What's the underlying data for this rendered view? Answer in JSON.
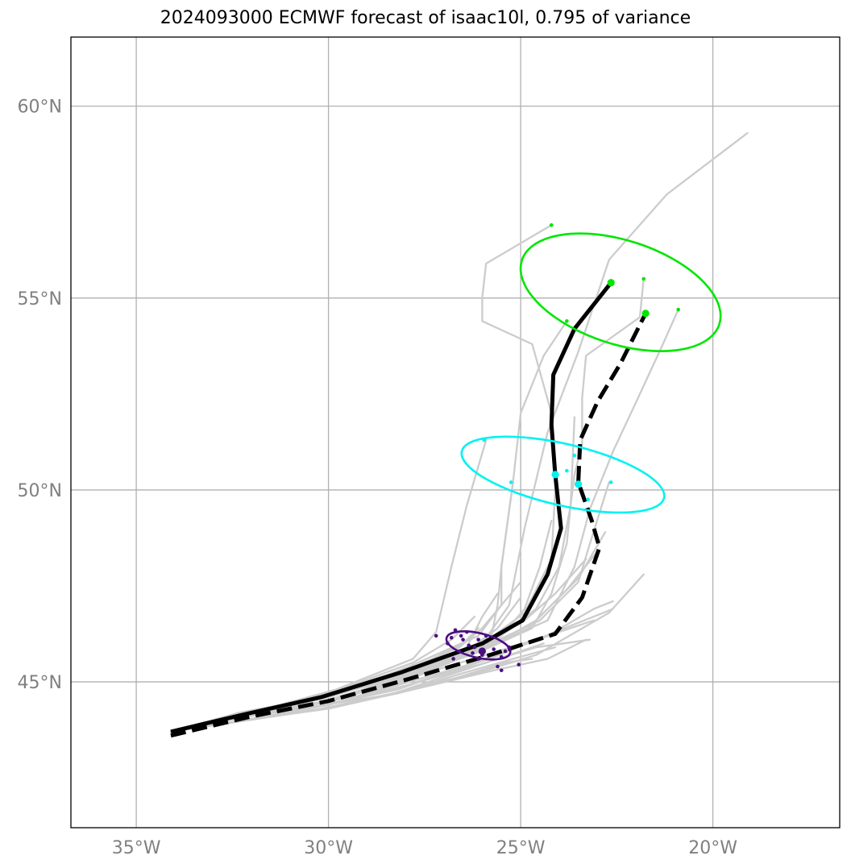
{
  "title": "2024093000 ECMWF forecast of isaac10l, 0.795 of variance",
  "colors": {
    "ensemble": "#cccccc",
    "mean_track": "#000000",
    "early_cluster": "#4b0f82",
    "mid_cluster": "#00f2f2",
    "late_cluster": "#00e600",
    "grid": "#b0b0b0",
    "tick_text": "#808080"
  },
  "chart_data": {
    "type": "map-tracks",
    "xlim": [
      -36.7,
      -16.7
    ],
    "ylim": [
      41.2,
      61.8
    ],
    "x_ticks": [
      {
        "value": -35,
        "label": "35°W"
      },
      {
        "value": -30,
        "label": "30°W"
      },
      {
        "value": -25,
        "label": "25°W"
      },
      {
        "value": -20,
        "label": "20°W"
      }
    ],
    "y_ticks": [
      {
        "value": 60,
        "label": "60°N"
      },
      {
        "value": 55,
        "label": "55°N"
      },
      {
        "value": 50,
        "label": "50°N"
      },
      {
        "value": 45,
        "label": "45°N"
      }
    ],
    "grid": true,
    "ensemble_tracks": [
      [
        [
          -34.1,
          43.7
        ],
        [
          -32.2,
          44.2
        ],
        [
          -30.1,
          44.6
        ],
        [
          -28.0,
          45.2
        ],
        [
          -26.0,
          46.0
        ],
        [
          -25.3,
          47.0
        ],
        [
          -24.9,
          49.0
        ],
        [
          -24.3,
          51.5
        ],
        [
          -23.5,
          53.6
        ],
        [
          -22.7,
          56.0
        ],
        [
          -21.2,
          57.7
        ],
        [
          -19.1,
          59.3
        ]
      ],
      [
        [
          -34.1,
          43.7
        ],
        [
          -32.0,
          44.2
        ],
        [
          -29.8,
          44.8
        ],
        [
          -27.8,
          45.6
        ],
        [
          -27.2,
          46.3
        ],
        [
          -26.8,
          48.0
        ],
        [
          -26.4,
          49.6
        ],
        [
          -25.9,
          51.3
        ]
      ],
      [
        [
          -34.1,
          43.7
        ],
        [
          -32.1,
          44.1
        ],
        [
          -30.0,
          44.7
        ],
        [
          -28.1,
          45.3
        ],
        [
          -25.8,
          46.0
        ],
        [
          -25.6,
          47.0
        ],
        [
          -25.5,
          48.0
        ],
        [
          -25.2,
          50.2
        ]
      ],
      [
        [
          -34.1,
          43.7
        ],
        [
          -32.3,
          44.2
        ],
        [
          -30.0,
          44.6
        ],
        [
          -27.9,
          45.4
        ],
        [
          -26.1,
          46.2
        ],
        [
          -25.5,
          47.0
        ],
        [
          -25.5,
          48.0
        ],
        [
          -25.2,
          50.2
        ],
        [
          -25.0,
          52.0
        ],
        [
          -24.4,
          53.5
        ],
        [
          -23.8,
          54.4
        ]
      ],
      [
        [
          -34.1,
          43.7
        ],
        [
          -32.2,
          44.1
        ],
        [
          -30.0,
          44.5
        ],
        [
          -27.9,
          45.2
        ],
        [
          -26.1,
          45.9
        ],
        [
          -24.9,
          46.8
        ],
        [
          -24.2,
          48.2
        ],
        [
          -24.1,
          50.0
        ],
        [
          -24.2,
          52.0
        ],
        [
          -24.7,
          53.8
        ],
        [
          -26.0,
          54.4
        ],
        [
          -26.0,
          55.0
        ],
        [
          -25.9,
          55.9
        ],
        [
          -24.2,
          56.9
        ]
      ],
      [
        [
          -34.1,
          43.7
        ],
        [
          -32.1,
          44.1
        ],
        [
          -30.0,
          44.5
        ],
        [
          -28.0,
          45.1
        ],
        [
          -25.8,
          45.9
        ],
        [
          -24.7,
          46.4
        ],
        [
          -24.2,
          47.3
        ],
        [
          -23.8,
          48.6
        ],
        [
          -23.7,
          49.6
        ],
        [
          -23.6,
          50.4
        ],
        [
          -23.4,
          51.2
        ],
        [
          -23.4,
          52.4
        ],
        [
          -23.3,
          53.5
        ],
        [
          -21.9,
          54.5
        ],
        [
          -21.8,
          55.5
        ]
      ],
      [
        [
          -34.1,
          43.7
        ],
        [
          -32.0,
          44.2
        ],
        [
          -29.8,
          44.7
        ],
        [
          -27.6,
          45.4
        ],
        [
          -25.9,
          45.9
        ],
        [
          -24.3,
          46.6
        ],
        [
          -23.6,
          48.0
        ],
        [
          -23.2,
          49.5
        ],
        [
          -22.6,
          51.0
        ],
        [
          -21.9,
          52.5
        ],
        [
          -21.3,
          53.8
        ],
        [
          -20.9,
          54.7
        ]
      ],
      [
        [
          -34.1,
          43.7
        ],
        [
          -32.3,
          44.2
        ],
        [
          -30.2,
          44.6
        ],
        [
          -28.1,
          45.1
        ],
        [
          -26.2,
          45.8
        ],
        [
          -24.5,
          46.6
        ],
        [
          -23.5,
          47.6
        ],
        [
          -23.2,
          48.6
        ],
        [
          -22.7,
          50.2
        ]
      ],
      [
        [
          -34.1,
          43.7
        ],
        [
          -32.1,
          44.1
        ],
        [
          -30.0,
          44.5
        ],
        [
          -27.8,
          45.2
        ],
        [
          -25.9,
          45.9
        ],
        [
          -24.6,
          46.9
        ],
        [
          -24.0,
          48.0
        ],
        [
          -23.7,
          49.6
        ],
        [
          -23.6,
          51.9
        ]
      ],
      [
        [
          -34.1,
          43.7
        ],
        [
          -32.1,
          44.1
        ],
        [
          -29.9,
          44.5
        ],
        [
          -27.9,
          45.1
        ],
        [
          -25.9,
          45.7
        ],
        [
          -24.3,
          46.2
        ],
        [
          -23.1,
          46.9
        ],
        [
          -22.6,
          47.1
        ]
      ],
      [
        [
          -34.1,
          43.7
        ],
        [
          -32.2,
          44.0
        ],
        [
          -30.0,
          44.4
        ],
        [
          -27.9,
          45.0
        ],
        [
          -25.8,
          45.6
        ],
        [
          -24.1,
          46.3
        ],
        [
          -22.6,
          46.9
        ]
      ],
      [
        [
          -34.1,
          43.7
        ],
        [
          -32.3,
          44.1
        ],
        [
          -30.1,
          44.4
        ],
        [
          -28.0,
          44.9
        ],
        [
          -25.9,
          45.5
        ],
        [
          -24.6,
          45.9
        ],
        [
          -23.2,
          46.1
        ]
      ],
      [
        [
          -34.1,
          43.7
        ],
        [
          -32.2,
          44.0
        ],
        [
          -30.0,
          44.3
        ],
        [
          -27.8,
          44.8
        ],
        [
          -25.7,
          45.3
        ],
        [
          -24.3,
          45.6
        ],
        [
          -23.3,
          46.1
        ]
      ],
      [
        [
          -34.1,
          43.7
        ],
        [
          -32.1,
          44.0
        ],
        [
          -30.1,
          44.3
        ],
        [
          -27.9,
          44.8
        ],
        [
          -25.9,
          45.3
        ],
        [
          -24.6,
          45.7
        ],
        [
          -22.7,
          46.8
        ],
        [
          -21.8,
          47.8
        ]
      ],
      [
        [
          -34.1,
          43.7
        ],
        [
          -32.2,
          44.1
        ],
        [
          -30.0,
          44.6
        ],
        [
          -28.0,
          45.2
        ],
        [
          -26.0,
          45.8
        ],
        [
          -24.6,
          46.6
        ],
        [
          -23.5,
          47.7
        ],
        [
          -22.8,
          48.9
        ]
      ],
      [
        [
          -34.1,
          43.7
        ],
        [
          -32.1,
          44.1
        ],
        [
          -30.1,
          44.5
        ],
        [
          -28.1,
          45.1
        ],
        [
          -26.3,
          45.7
        ],
        [
          -24.8,
          46.4
        ],
        [
          -23.8,
          47.4
        ],
        [
          -23.0,
          48.4
        ]
      ],
      [
        [
          -34.1,
          43.7
        ],
        [
          -32.2,
          44.1
        ],
        [
          -30.0,
          44.5
        ],
        [
          -28.0,
          45.1
        ],
        [
          -26.4,
          45.8
        ],
        [
          -24.9,
          46.6
        ],
        [
          -24.1,
          47.3
        ],
        [
          -23.3,
          48.2
        ]
      ],
      [
        [
          -34.1,
          43.7
        ],
        [
          -32.2,
          44.1
        ],
        [
          -30.1,
          44.4
        ],
        [
          -28.2,
          44.8
        ],
        [
          -26.5,
          45.4
        ],
        [
          -25.1,
          45.9
        ],
        [
          -24.0,
          46.3
        ],
        [
          -23.1,
          46.6
        ]
      ],
      [
        [
          -34.1,
          43.7
        ],
        [
          -32.1,
          44.1
        ],
        [
          -30.1,
          44.4
        ],
        [
          -28.2,
          44.7
        ],
        [
          -26.6,
          45.2
        ],
        [
          -25.2,
          45.6
        ],
        [
          -24.1,
          45.9
        ]
      ],
      [
        [
          -34.1,
          43.7
        ],
        [
          -32.2,
          44.0
        ],
        [
          -30.2,
          44.3
        ],
        [
          -28.3,
          44.7
        ],
        [
          -26.8,
          45.2
        ],
        [
          -25.6,
          45.6
        ],
        [
          -24.4,
          46.0
        ]
      ],
      [
        [
          -34.1,
          43.7
        ],
        [
          -32.2,
          44.0
        ],
        [
          -30.1,
          44.3
        ],
        [
          -28.2,
          44.7
        ],
        [
          -26.7,
          45.1
        ],
        [
          -25.4,
          45.5
        ],
        [
          -24.7,
          45.6
        ]
      ],
      [
        [
          -34.1,
          43.7
        ],
        [
          -32.2,
          44.1
        ],
        [
          -30.0,
          44.5
        ],
        [
          -28.1,
          45.0
        ],
        [
          -26.6,
          45.6
        ],
        [
          -25.5,
          46.2
        ],
        [
          -24.9,
          46.9
        ],
        [
          -24.5,
          48.0
        ],
        [
          -24.2,
          49.2
        ]
      ],
      [
        [
          -34.1,
          43.7
        ],
        [
          -32.2,
          44.0
        ],
        [
          -30.0,
          44.4
        ],
        [
          -28.0,
          45.0
        ],
        [
          -26.5,
          45.7
        ],
        [
          -26.0,
          46.7
        ],
        [
          -25.6,
          47.3
        ]
      ],
      [
        [
          -34.1,
          43.7
        ],
        [
          -32.3,
          44.2
        ],
        [
          -30.1,
          44.6
        ],
        [
          -28.0,
          45.3
        ],
        [
          -26.6,
          45.9
        ],
        [
          -26.0,
          46.4
        ],
        [
          -25.5,
          47.0
        ],
        [
          -25.0,
          47.6
        ]
      ],
      [
        [
          -34.1,
          43.7
        ],
        [
          -32.2,
          44.1
        ],
        [
          -30.0,
          44.5
        ],
        [
          -27.9,
          45.2
        ],
        [
          -26.4,
          45.8
        ],
        [
          -25.6,
          46.4
        ],
        [
          -25.0,
          47.2
        ]
      ],
      [
        [
          -34.1,
          43.7
        ],
        [
          -32.1,
          44.2
        ],
        [
          -30.0,
          44.7
        ],
        [
          -27.8,
          45.5
        ],
        [
          -26.8,
          46.1
        ],
        [
          -26.2,
          46.7
        ]
      ],
      [
        [
          -34.1,
          43.7
        ],
        [
          -32.2,
          44.2
        ],
        [
          -30.0,
          44.6
        ],
        [
          -27.9,
          45.3
        ],
        [
          -26.5,
          46.0
        ],
        [
          -26.1,
          46.4
        ]
      ],
      [
        [
          -34.1,
          43.7
        ],
        [
          -32.1,
          44.1
        ],
        [
          -30.0,
          44.4
        ],
        [
          -28.0,
          44.9
        ],
        [
          -26.4,
          45.4
        ],
        [
          -25.3,
          45.8
        ]
      ]
    ],
    "mean_track_solid": [
      [
        -34.1,
        43.7
      ],
      [
        -32.2,
        44.15
      ],
      [
        -30.2,
        44.6
      ],
      [
        -28.1,
        45.25
      ],
      [
        -26.0,
        46.0
      ],
      [
        -24.95,
        46.6
      ],
      [
        -24.3,
        47.8
      ],
      [
        -23.95,
        49.0
      ],
      [
        -24.1,
        50.4
      ],
      [
        -24.2,
        51.7
      ],
      [
        -24.15,
        53.0
      ],
      [
        -23.6,
        54.2
      ],
      [
        -22.65,
        55.4
      ]
    ],
    "mean_track_dashed": [
      [
        -34.1,
        43.6
      ],
      [
        -32.0,
        44.1
      ],
      [
        -30.0,
        44.5
      ],
      [
        -28.0,
        45.05
      ],
      [
        -25.8,
        45.7
      ],
      [
        -24.1,
        46.25
      ],
      [
        -23.4,
        47.2
      ],
      [
        -22.95,
        48.5
      ],
      [
        -23.15,
        49.2
      ],
      [
        -23.5,
        50.2
      ],
      [
        -23.45,
        51.3
      ],
      [
        -23.0,
        52.3
      ],
      [
        -22.4,
        53.3
      ],
      [
        -21.75,
        54.6
      ]
    ],
    "clusters": [
      {
        "color_key": "early_cluster",
        "ellipse": {
          "cx": -26.1,
          "cy": 45.95,
          "rx": 0.85,
          "ry": 0.32,
          "rotate": 13
        },
        "centers": [
          [
            -26.0,
            45.8
          ]
        ],
        "points": [
          [
            -26.7,
            46.35
          ],
          [
            -26.5,
            46.1
          ],
          [
            -26.9,
            46.0
          ],
          [
            -26.6,
            45.8
          ],
          [
            -26.2,
            45.9
          ],
          [
            -26.1,
            46.1
          ],
          [
            -26.0,
            45.7
          ],
          [
            -25.7,
            45.85
          ],
          [
            -25.5,
            45.65
          ],
          [
            -25.4,
            45.8
          ],
          [
            -25.3,
            45.9
          ],
          [
            -26.35,
            45.95
          ],
          [
            -26.55,
            46.2
          ],
          [
            -26.8,
            46.15
          ],
          [
            -27.2,
            46.2
          ],
          [
            -26.4,
            46.3
          ],
          [
            -25.6,
            45.4
          ],
          [
            -25.5,
            45.3
          ],
          [
            -25.05,
            45.45
          ],
          [
            -26.25,
            45.75
          ],
          [
            -25.9,
            46.2
          ],
          [
            -26.75,
            45.6
          ],
          [
            -26.1,
            45.6
          ]
        ]
      },
      {
        "color_key": "mid_cluster",
        "ellipse": {
          "cx": -23.9,
          "cy": 50.4,
          "rx": 2.7,
          "ry": 0.8,
          "rotate": 13
        },
        "centers": [
          [
            -24.1,
            50.4
          ],
          [
            -23.5,
            50.15
          ]
        ],
        "points": [
          [
            -25.95,
            51.3
          ],
          [
            -25.25,
            50.2
          ],
          [
            -23.8,
            50.5
          ],
          [
            -23.6,
            50.9
          ],
          [
            -23.25,
            49.75
          ],
          [
            -22.65,
            50.2
          ],
          [
            -24.05,
            50.4
          ]
        ]
      },
      {
        "color_key": "late_cluster",
        "ellipse": {
          "cx": -22.4,
          "cy": 55.15,
          "rx": 2.7,
          "ry": 1.35,
          "rotate": 18
        },
        "centers": [
          [
            -22.65,
            55.4
          ],
          [
            -21.75,
            54.6
          ]
        ],
        "points": [
          [
            -24.2,
            56.9
          ],
          [
            -23.8,
            54.4
          ],
          [
            -21.8,
            55.5
          ],
          [
            -20.9,
            54.7
          ]
        ]
      }
    ]
  }
}
